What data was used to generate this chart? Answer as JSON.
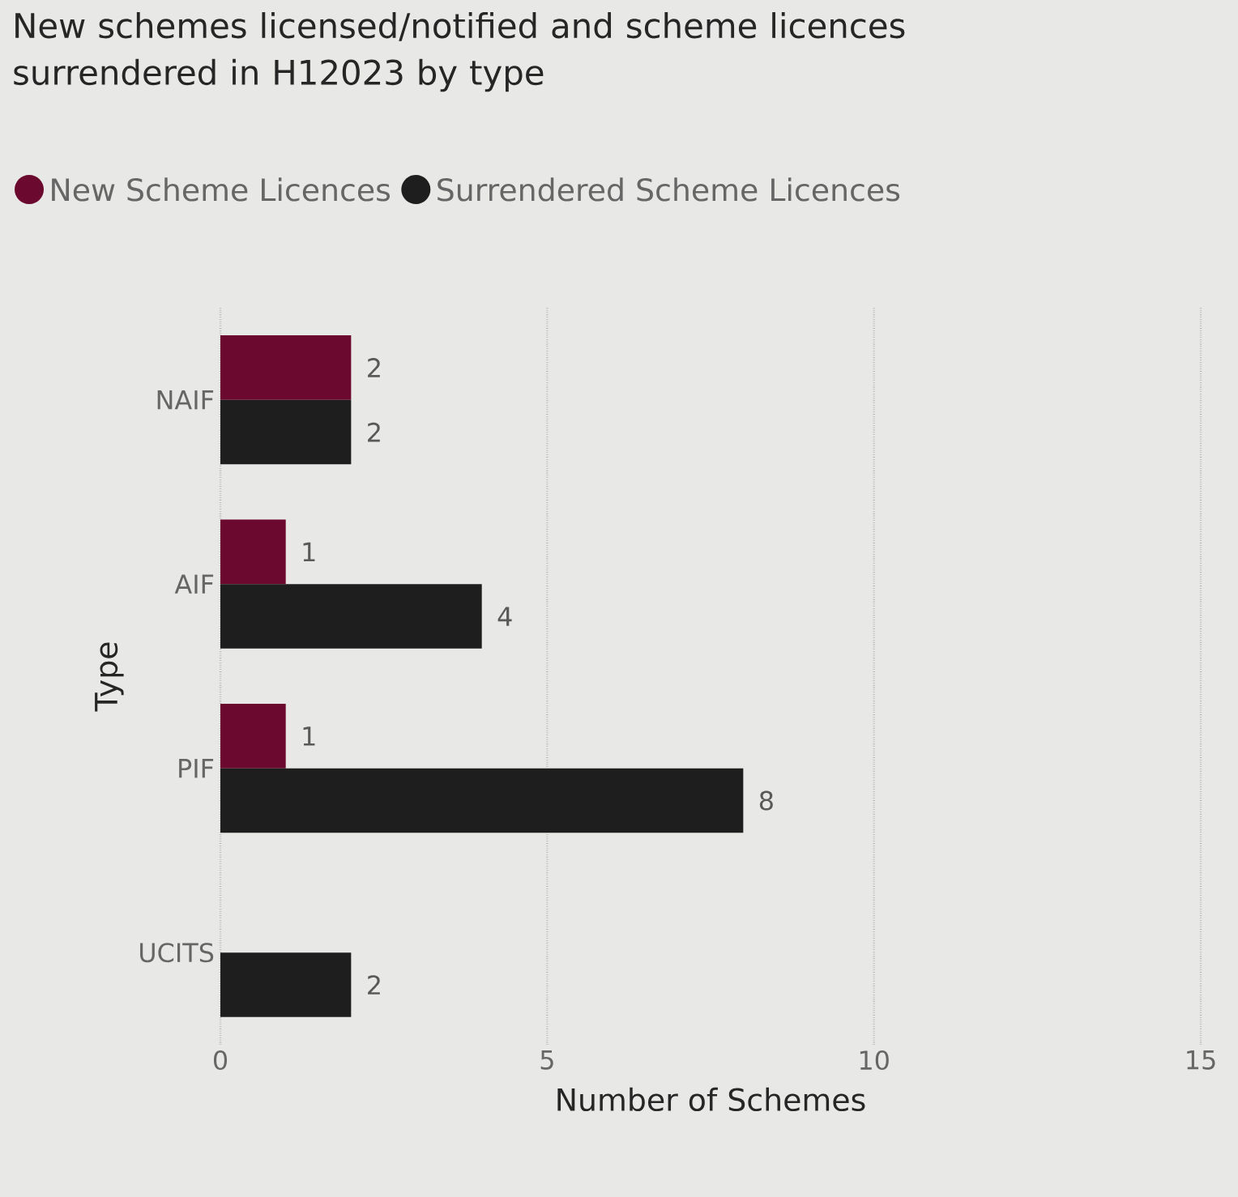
{
  "chart_data": {
    "type": "bar",
    "orientation": "horizontal",
    "title": "New schemes licensed/notified and scheme licences surrendered in H12023 by type",
    "xlabel": "Number of Schemes",
    "ylabel": "Type",
    "categories": [
      "NAIF",
      "AIF",
      "PIF",
      "UCITS"
    ],
    "series": [
      {
        "name": "New Scheme Licences",
        "color": "#6b0a2e",
        "values": [
          2,
          1,
          1,
          null
        ]
      },
      {
        "name": "Surrendered Scheme Licences",
        "color": "#1e1e1e",
        "values": [
          2,
          4,
          8,
          2
        ]
      }
    ],
    "xlim": [
      0,
      15
    ],
    "xticks": [
      0,
      5,
      10,
      15
    ],
    "grid": "x",
    "legend": "top left",
    "data_labels": true
  }
}
